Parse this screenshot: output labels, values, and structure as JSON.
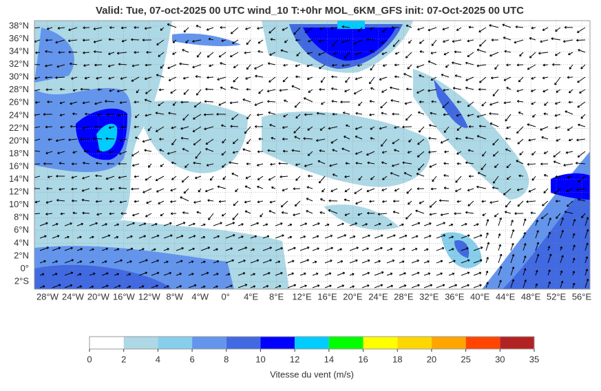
{
  "title": "Valid: Tue, 07-oct-2025   00 UTC   wind_10   T:+0hr   MOL_6KM_GFS   init: 07-Oct-2025    00 UTC",
  "lat_labels": [
    "38°N",
    "36°N",
    "34°N",
    "32°N",
    "30°N",
    "28°N",
    "26°N",
    "24°N",
    "22°N",
    "20°N",
    "18°N",
    "16°N",
    "14°N",
    "12°N",
    "10°N",
    "8°N",
    "6°N",
    "4°N",
    "2°N",
    "0°",
    "2°S"
  ],
  "lon_labels": [
    "28°W",
    "24°W",
    "20°W",
    "16°W",
    "12°W",
    "8°W",
    "4°W",
    "0°",
    "4°E",
    "8°E",
    "12°E",
    "16°E",
    "20°E",
    "24°E",
    "28°E",
    "32°E",
    "36°E",
    "40°E",
    "44°E",
    "48°E",
    "52°E",
    "56°E"
  ],
  "colorbar": {
    "label": "Vitesse du vent (m/s)",
    "levels": [
      0,
      2,
      4,
      6,
      8,
      10,
      12,
      14,
      16,
      18,
      20,
      25,
      30,
      35
    ],
    "colors": [
      "#ffffff",
      "#add8e6",
      "#87ceeb",
      "#6495ed",
      "#4169e1",
      "#0000ff",
      "#00ccff",
      "#00ff00",
      "#ffff00",
      "#ffd700",
      "#ffa500",
      "#ff4500",
      "#b22222"
    ]
  }
}
